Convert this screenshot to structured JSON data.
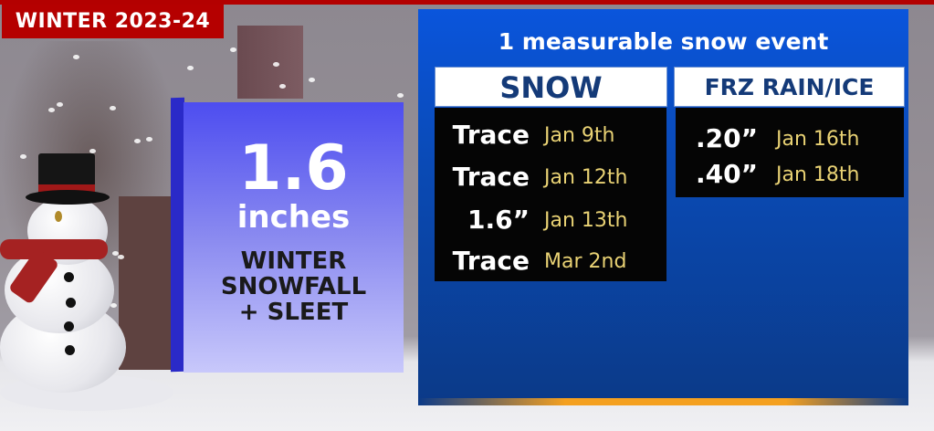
{
  "banner": {
    "label": "WINTER 2023-24"
  },
  "stat_box": {
    "value": "1.6",
    "unit": "inches",
    "label_lines": [
      "WINTER",
      "SNOWFALL",
      "+ SLEET"
    ]
  },
  "panel": {
    "title": "1 measurable snow event",
    "snow": {
      "header": "SNOW",
      "rows": [
        {
          "amount": "Trace",
          "date": "Jan 9th"
        },
        {
          "amount": "Trace",
          "date": "Jan 12th"
        },
        {
          "amount": "1.6”",
          "date": "Jan 13th"
        },
        {
          "amount": "Trace",
          "date": "Mar 2nd"
        }
      ]
    },
    "freezing_rain": {
      "header": "FRZ RAIN/ICE",
      "rows": [
        {
          "amount": ".20”",
          "date": "Jan 16th"
        },
        {
          "amount": ".40”",
          "date": "Jan 18th"
        }
      ]
    }
  },
  "colors": {
    "banner": "#b50000",
    "panel": "#0a55dc",
    "date_text": "#e9d274",
    "header_text": "#143a78"
  }
}
